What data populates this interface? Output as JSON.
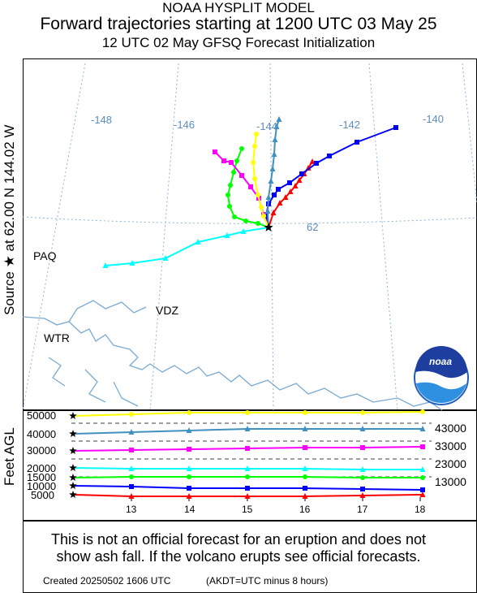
{
  "header": {
    "line1": "NOAA HYSPLIT MODEL",
    "line2": "Forward trajectories starting at 1200 UTC 03 May 25",
    "line3": "12 UTC 02 May    GFSQ  Forecast Initialization"
  },
  "source_label": "Source ★  at   62.00 N  144.02 W",
  "alt_axis_label": "Feet AGL",
  "map": {
    "lon_labels": [
      "-148",
      "-146",
      "-144",
      "-142",
      "-140"
    ],
    "lat_label": "62",
    "places": [
      "PAQ",
      "VDZ",
      "WTR"
    ],
    "logo_text": "noaa"
  },
  "alt_panel": {
    "y_ticks": [
      "50000",
      "40000",
      "30000",
      "20000",
      "15000",
      "10000",
      "5000"
    ],
    "right_labels": [
      "43000",
      "33000",
      "23000",
      "13000"
    ],
    "x_ticks": [
      "13",
      "14",
      "15",
      "16",
      "17",
      "18"
    ]
  },
  "footer": {
    "note_line1": "This is not an official forecast for an eruption and does not",
    "note_line2": "show ash fall. If the volcano erupts see official forecasts.",
    "created": "Created 20250502 1606 UTC",
    "akdt": "(AKDT=UTC minus 8 hours)"
  },
  "trajectories": [
    {
      "color": "#ff0000",
      "marker": "triangle",
      "start_ft": 5000
    },
    {
      "color": "#0000ff",
      "marker": "square",
      "start_ft": 10000
    },
    {
      "color": "#00ff00",
      "marker": "circle",
      "start_ft": 15000
    },
    {
      "color": "#00ffff",
      "marker": "triangle",
      "start_ft": 20000
    },
    {
      "color": "#ff00ff",
      "marker": "square",
      "start_ft": 30000
    },
    {
      "color": "#4090c0",
      "marker": "triangle",
      "start_ft": 40000
    },
    {
      "color": "#ffff00",
      "marker": "circle",
      "start_ft": 50000
    }
  ]
}
